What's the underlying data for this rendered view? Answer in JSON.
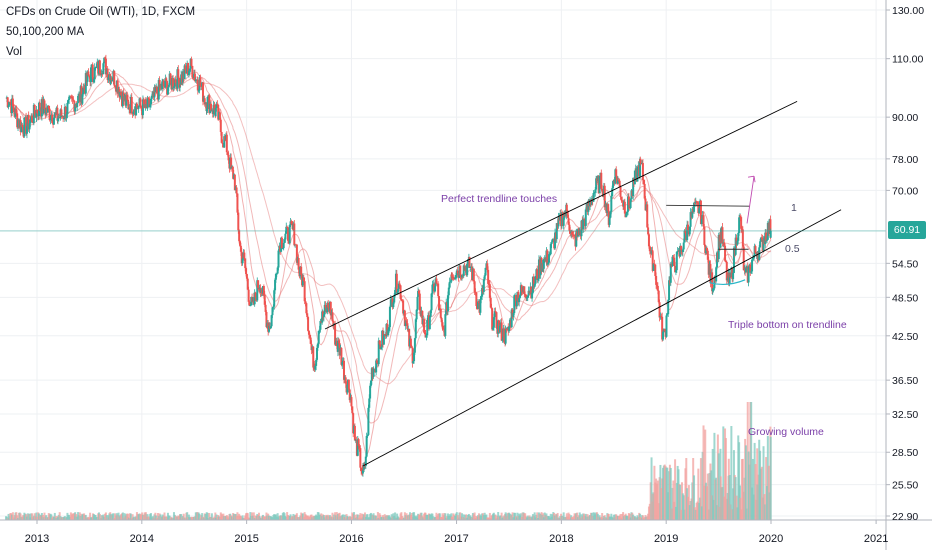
{
  "legend": {
    "title": "CFDs on Crude Oil (WTI), 1D, FXCM",
    "indicator1": "50,100,200 MA",
    "indicator2": "Vol"
  },
  "annotations": {
    "trendline_touches": "Perfect trendline touches",
    "triple_bottom": "Triple bottom on trendline",
    "growing_volume": "Growing volume",
    "level_1": "1",
    "level_05": "0.5"
  },
  "last_price": "60.91",
  "colors": {
    "up": "#26a69a",
    "down": "#ef5350",
    "ma": "#e57373",
    "trendline": "#000000",
    "annotation": "#7b3fa8",
    "price_line": "#26a69a"
  },
  "chart_data": {
    "type": "line",
    "title": "CFDs on Crude Oil (WTI), 1D, FXCM",
    "y_scale": "log",
    "y_ticks": [
      "130.00",
      "110.00",
      "90.00",
      "78.00",
      "70.00",
      "60.91",
      "54.50",
      "48.50",
      "42.50",
      "36.50",
      "32.50",
      "28.50",
      "25.50",
      "22.90"
    ],
    "x_ticks": [
      "2013",
      "2014",
      "2015",
      "2016",
      "2017",
      "2018",
      "2019",
      "2020",
      "2021"
    ],
    "ylim": [
      22.9,
      130
    ],
    "xlim": [
      "2012-09",
      "2021-01"
    ],
    "series": [
      {
        "values": [
          [
            "2012-09-15",
            96
          ],
          [
            "2012-11-15",
            87
          ],
          [
            "2013-01-15",
            93
          ],
          [
            "2013-03-15",
            90
          ],
          [
            "2013-05-15",
            95
          ],
          [
            "2013-07-15",
            105
          ],
          [
            "2013-08-20",
            108
          ],
          [
            "2013-09-15",
            104
          ],
          [
            "2013-11-15",
            94
          ],
          [
            "2014-01-15",
            93
          ],
          [
            "2014-03-15",
            100
          ],
          [
            "2014-05-15",
            103
          ],
          [
            "2014-06-20",
            107
          ],
          [
            "2014-07-15",
            102
          ],
          [
            "2014-08-15",
            95
          ],
          [
            "2014-09-15",
            92
          ],
          [
            "2014-10-15",
            83
          ],
          [
            "2014-11-15",
            74
          ],
          [
            "2014-12-15",
            56
          ],
          [
            "2015-01-20",
            47
          ],
          [
            "2015-02-15",
            51
          ],
          [
            "2015-03-20",
            44
          ],
          [
            "2015-05-01",
            59
          ],
          [
            "2015-06-10",
            61
          ],
          [
            "2015-07-10",
            52
          ],
          [
            "2015-08-25",
            39
          ],
          [
            "2015-09-15",
            45
          ],
          [
            "2015-10-15",
            47
          ],
          [
            "2015-11-15",
            41
          ],
          [
            "2015-12-20",
            36
          ],
          [
            "2016-01-20",
            29
          ],
          [
            "2016-02-11",
            26.5
          ],
          [
            "2016-03-15",
            38
          ],
          [
            "2016-04-20",
            42
          ],
          [
            "2016-06-08",
            51
          ],
          [
            "2016-08-03",
            40
          ],
          [
            "2016-08-20",
            48
          ],
          [
            "2016-09-15",
            43
          ],
          [
            "2016-10-20",
            51
          ],
          [
            "2016-11-14",
            43
          ],
          [
            "2016-12-15",
            53
          ],
          [
            "2017-02-15",
            54
          ],
          [
            "2017-03-22",
            47
          ],
          [
            "2017-04-15",
            53
          ],
          [
            "2017-05-05",
            45
          ],
          [
            "2017-06-21",
            42.5
          ],
          [
            "2017-08-01",
            49
          ],
          [
            "2017-09-15",
            50
          ],
          [
            "2017-11-01",
            55
          ],
          [
            "2018-01-20",
            65
          ],
          [
            "2018-02-10",
            59
          ],
          [
            "2018-05-20",
            72
          ],
          [
            "2018-06-15",
            64
          ],
          [
            "2018-07-05",
            74
          ],
          [
            "2018-08-15",
            66
          ],
          [
            "2018-10-03",
            76
          ],
          [
            "2018-11-15",
            55
          ],
          [
            "2018-12-24",
            42.5
          ],
          [
            "2019-01-20",
            54
          ],
          [
            "2019-04-23",
            66
          ],
          [
            "2019-06-12",
            51
          ],
          [
            "2019-07-10",
            60
          ],
          [
            "2019-08-07",
            51
          ],
          [
            "2019-09-16",
            63
          ],
          [
            "2019-10-03",
            52
          ],
          [
            "2019-11-15",
            57
          ],
          [
            "2019-12-27",
            61.5
          ],
          [
            "2019-12-31",
            60.91
          ]
        ]
      }
    ],
    "volume_growth_note": "Growing volume"
  }
}
